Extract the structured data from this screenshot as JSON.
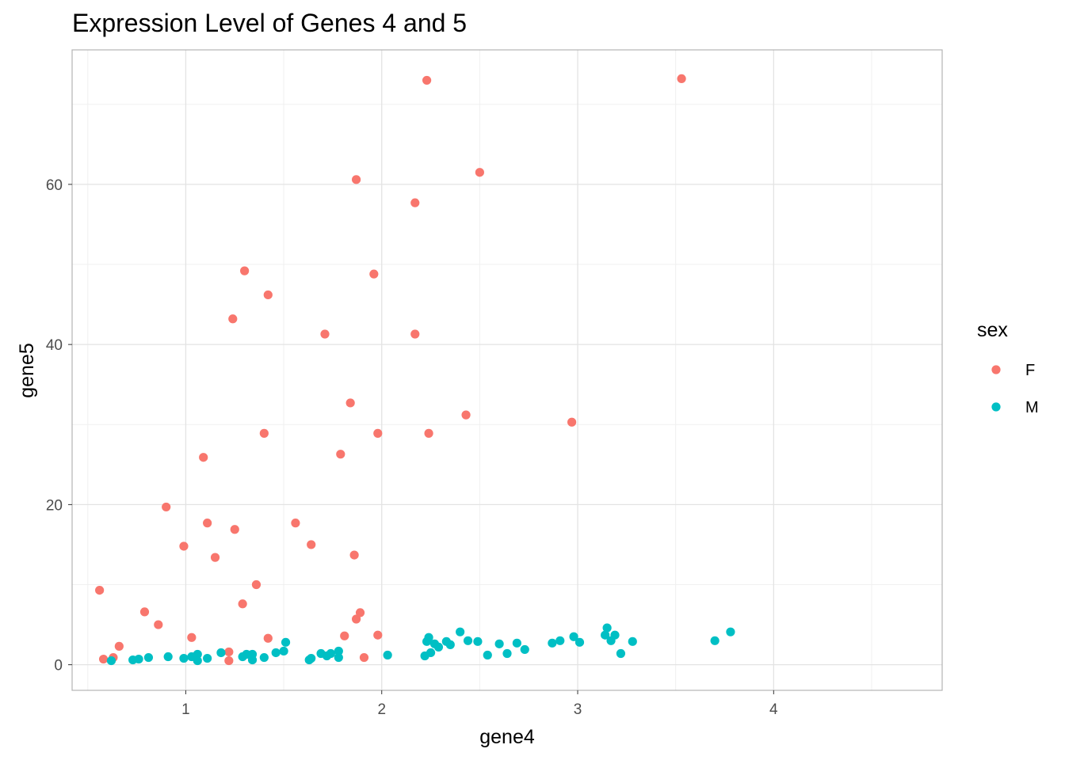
{
  "chart_data": {
    "type": "scatter",
    "title": "Expression Level of Genes 4 and 5",
    "xlabel": "gene4",
    "ylabel": "gene5",
    "xlim": [
      0.42,
      4.86
    ],
    "ylim": [
      -3.2,
      76.8
    ],
    "x_ticks": [
      1,
      2,
      3,
      4
    ],
    "y_ticks": [
      0,
      20,
      40,
      60
    ],
    "grid": true,
    "legend": {
      "title": "sex",
      "position": "right"
    },
    "series": [
      {
        "name": "F",
        "color": "#F8766D",
        "points": [
          [
            3.53,
            73.2
          ],
          [
            2.23,
            73.0
          ],
          [
            2.5,
            61.5
          ],
          [
            1.87,
            60.6
          ],
          [
            2.17,
            57.7
          ],
          [
            1.3,
            49.2
          ],
          [
            1.96,
            48.8
          ],
          [
            1.42,
            46.2
          ],
          [
            1.24,
            43.2
          ],
          [
            1.71,
            41.3
          ],
          [
            2.17,
            41.3
          ],
          [
            1.84,
            32.7
          ],
          [
            2.43,
            31.2
          ],
          [
            2.97,
            30.3
          ],
          [
            1.4,
            28.9
          ],
          [
            1.98,
            28.9
          ],
          [
            2.24,
            28.9
          ],
          [
            1.09,
            25.9
          ],
          [
            1.79,
            26.3
          ],
          [
            0.9,
            19.7
          ],
          [
            1.11,
            17.7
          ],
          [
            1.56,
            17.7
          ],
          [
            1.25,
            16.9
          ],
          [
            0.99,
            14.8
          ],
          [
            1.64,
            15.0
          ],
          [
            1.15,
            13.4
          ],
          [
            1.86,
            13.7
          ],
          [
            0.56,
            9.3
          ],
          [
            1.36,
            10.0
          ],
          [
            1.29,
            7.6
          ],
          [
            0.79,
            6.6
          ],
          [
            1.89,
            6.5
          ],
          [
            1.87,
            5.7
          ],
          [
            0.86,
            5.0
          ],
          [
            1.81,
            3.6
          ],
          [
            1.98,
            3.7
          ],
          [
            1.03,
            3.4
          ],
          [
            1.42,
            3.3
          ],
          [
            0.66,
            2.3
          ],
          [
            1.22,
            1.6
          ],
          [
            0.63,
            0.9
          ],
          [
            0.58,
            0.7
          ],
          [
            1.22,
            0.5
          ],
          [
            1.91,
            0.9
          ]
        ]
      },
      {
        "name": "M",
        "color": "#00BFC4",
        "points": [
          [
            3.78,
            4.1
          ],
          [
            3.7,
            3.0
          ],
          [
            3.15,
            4.6
          ],
          [
            3.14,
            3.7
          ],
          [
            3.19,
            3.7
          ],
          [
            3.17,
            3.0
          ],
          [
            3.28,
            2.9
          ],
          [
            3.22,
            1.4
          ],
          [
            2.98,
            3.5
          ],
          [
            3.01,
            2.8
          ],
          [
            2.91,
            3.0
          ],
          [
            2.87,
            2.7
          ],
          [
            2.73,
            1.9
          ],
          [
            2.69,
            2.7
          ],
          [
            2.64,
            1.4
          ],
          [
            2.6,
            2.6
          ],
          [
            2.54,
            1.2
          ],
          [
            2.49,
            2.9
          ],
          [
            2.44,
            3.0
          ],
          [
            2.4,
            4.1
          ],
          [
            2.35,
            2.5
          ],
          [
            2.33,
            2.9
          ],
          [
            2.29,
            2.2
          ],
          [
            2.27,
            2.6
          ],
          [
            2.24,
            3.4
          ],
          [
            2.23,
            2.9
          ],
          [
            2.25,
            1.5
          ],
          [
            2.22,
            1.1
          ],
          [
            2.03,
            1.2
          ],
          [
            1.78,
            1.7
          ],
          [
            1.78,
            0.9
          ],
          [
            1.74,
            1.4
          ],
          [
            1.72,
            1.1
          ],
          [
            1.69,
            1.4
          ],
          [
            1.64,
            0.8
          ],
          [
            1.63,
            0.6
          ],
          [
            1.51,
            2.8
          ],
          [
            1.5,
            1.7
          ],
          [
            1.46,
            1.5
          ],
          [
            1.4,
            0.9
          ],
          [
            1.34,
            1.3
          ],
          [
            1.34,
            0.6
          ],
          [
            1.31,
            1.3
          ],
          [
            1.29,
            1.0
          ],
          [
            1.18,
            1.5
          ],
          [
            1.11,
            0.8
          ],
          [
            1.06,
            1.3
          ],
          [
            1.06,
            0.5
          ],
          [
            1.03,
            1.0
          ],
          [
            0.99,
            0.8
          ],
          [
            0.91,
            1.0
          ],
          [
            0.81,
            0.9
          ],
          [
            0.76,
            0.7
          ],
          [
            0.73,
            0.6
          ],
          [
            0.62,
            0.5
          ]
        ]
      }
    ]
  }
}
